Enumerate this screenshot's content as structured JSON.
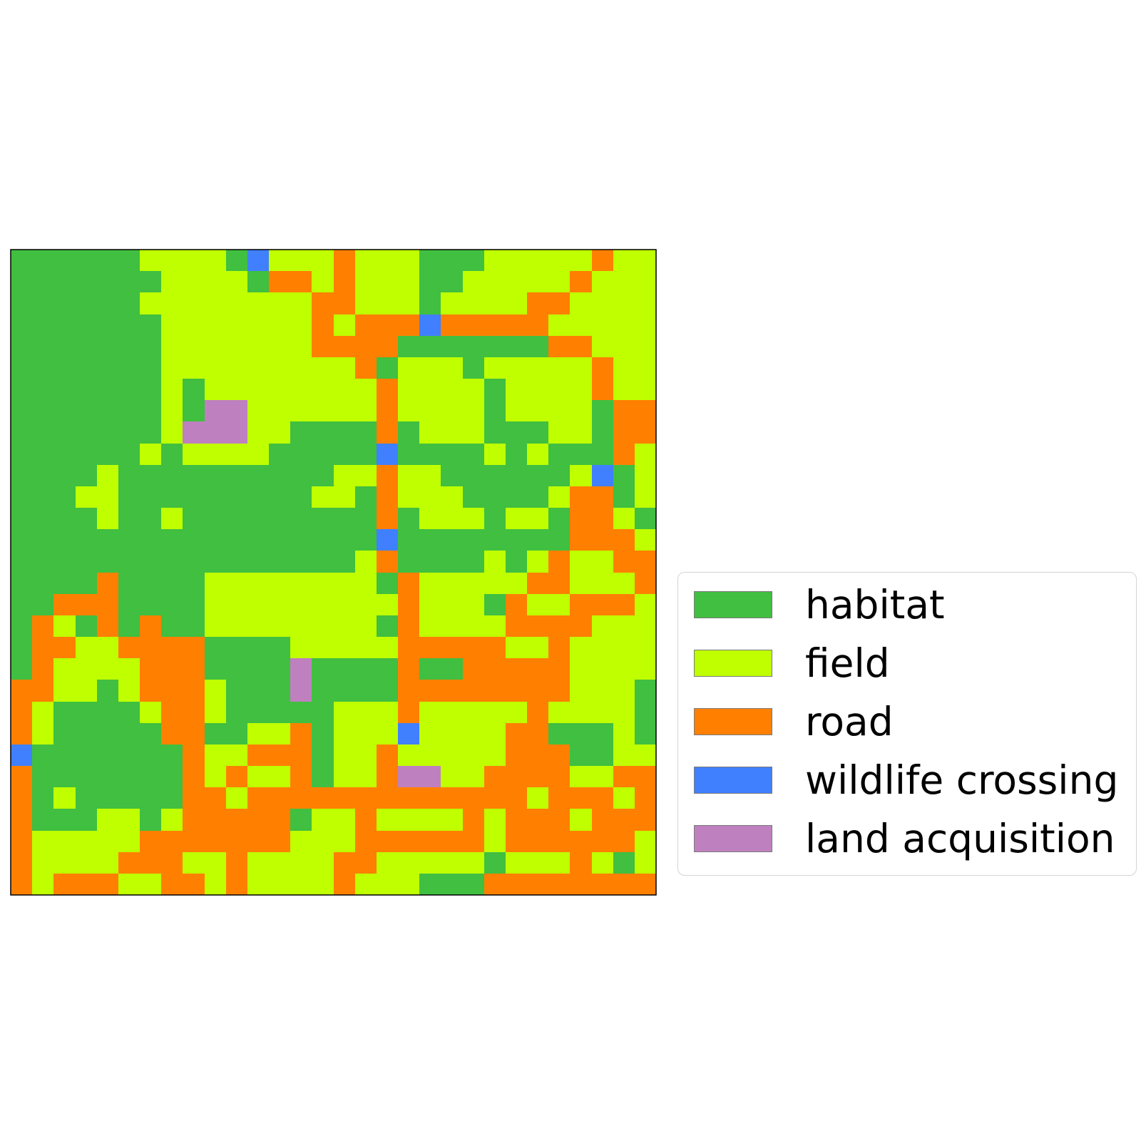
{
  "map": {
    "rows": 30,
    "cols": 30,
    "colors": {
      "H": "#40bf40",
      "F": "#bfff00",
      "R": "#ff8000",
      "W": "#4080ff",
      "L": "#bf80bf"
    },
    "grid": [
      "HHHHHHFFFFHWFFFRFFFHHHFFFFFRFF",
      "HHHHHHHFFFFHRRFRFFFHHFFFFFRFFF",
      "HHHHHHFFFFFFFFRRFFFHFFFFRRFFFF",
      "HHHHHHHFFFFFFFRFRRRWRRRRRFFFFF",
      "HHHHHHHFFFFFFFRRRRHHHHHHHRRFFF",
      "HHHHHHHFFFFFFFFFRHFFFHFFFFFRFF",
      "HHHHHHHFHFFFFFFFFRFFFFHFFFFRFF",
      "HHHHHHHFHLLFFFFFFRFFFFHFFFFHRR",
      "HHHHHHHFLLLFFHHHHRHFFFHHHFFHRR",
      "HHHHHHFHFFFFHHHHHWHHHHFHFHHHRF",
      "HHHHFHHHHHHHHHHFFRFFHHHHHHFWHF",
      "HHHFFHHHHHHHHHFFHRFFFHHHHFRRHF",
      "HHHHFHHFHHHHHHHHHRHFFFHFFHRRFH",
      "HHHHHHHHHHHHHHHHHWHHHHHHHHRRRF",
      "HHHHHHHHHHHHHHHHFRHHHHFHFRFFRR",
      "HHHHRHHHHFFFFFFFFHRFFFFFRRFFFR",
      "HHRRRHHHHFFFFFFFFFRFFFHRFFRRRF",
      "HRFHRHRHHFFFFFFFFHRFFFFRRRRFFF",
      "HRRFFRRRRHHHHFFFFFRRRRRFFRFFFF",
      "HRFFFFRRRHHHHLHHHHRHHRRRRRFFFF",
      "RRFFHFRRRFHHHLHHHHRRRRRRRRFFFH",
      "RFHHHHFRRFHHHHHFFFRFFFFFRFFFFH",
      "RFHHHHHRRHHFFRHFFFWFFFFRRHHHFH",
      "WHHHHHHHRFFRRRHFFRFFFFFRRRHHFF",
      "RHHHHHHHRFRFFRHFFRLLFFRRRRFFRR",
      "RHFHHHHHRRFRRRRRRRRRRRRRFRRRFR",
      "RHHHFFHFRRRRRHFFRFFFFRFRRRFRRR",
      "RFFFFFRRRRRRRFFFRRRRRRFRRRRRRF",
      "RFFFFRRRFFRFFFFRRFFFFFHFFFRFHF",
      "RFRRRFFRRFRFFFFRFFFHHHRRRRRRRR"
    ]
  },
  "legend": {
    "items": [
      {
        "key": "H",
        "label": "habitat",
        "color": "#40bf40"
      },
      {
        "key": "F",
        "label": "field",
        "color": "#bfff00"
      },
      {
        "key": "R",
        "label": "road",
        "color": "#ff8000"
      },
      {
        "key": "W",
        "label": "wildlife crossing",
        "color": "#4080ff"
      },
      {
        "key": "L",
        "label": "land acquisition",
        "color": "#bf80bf"
      }
    ]
  }
}
